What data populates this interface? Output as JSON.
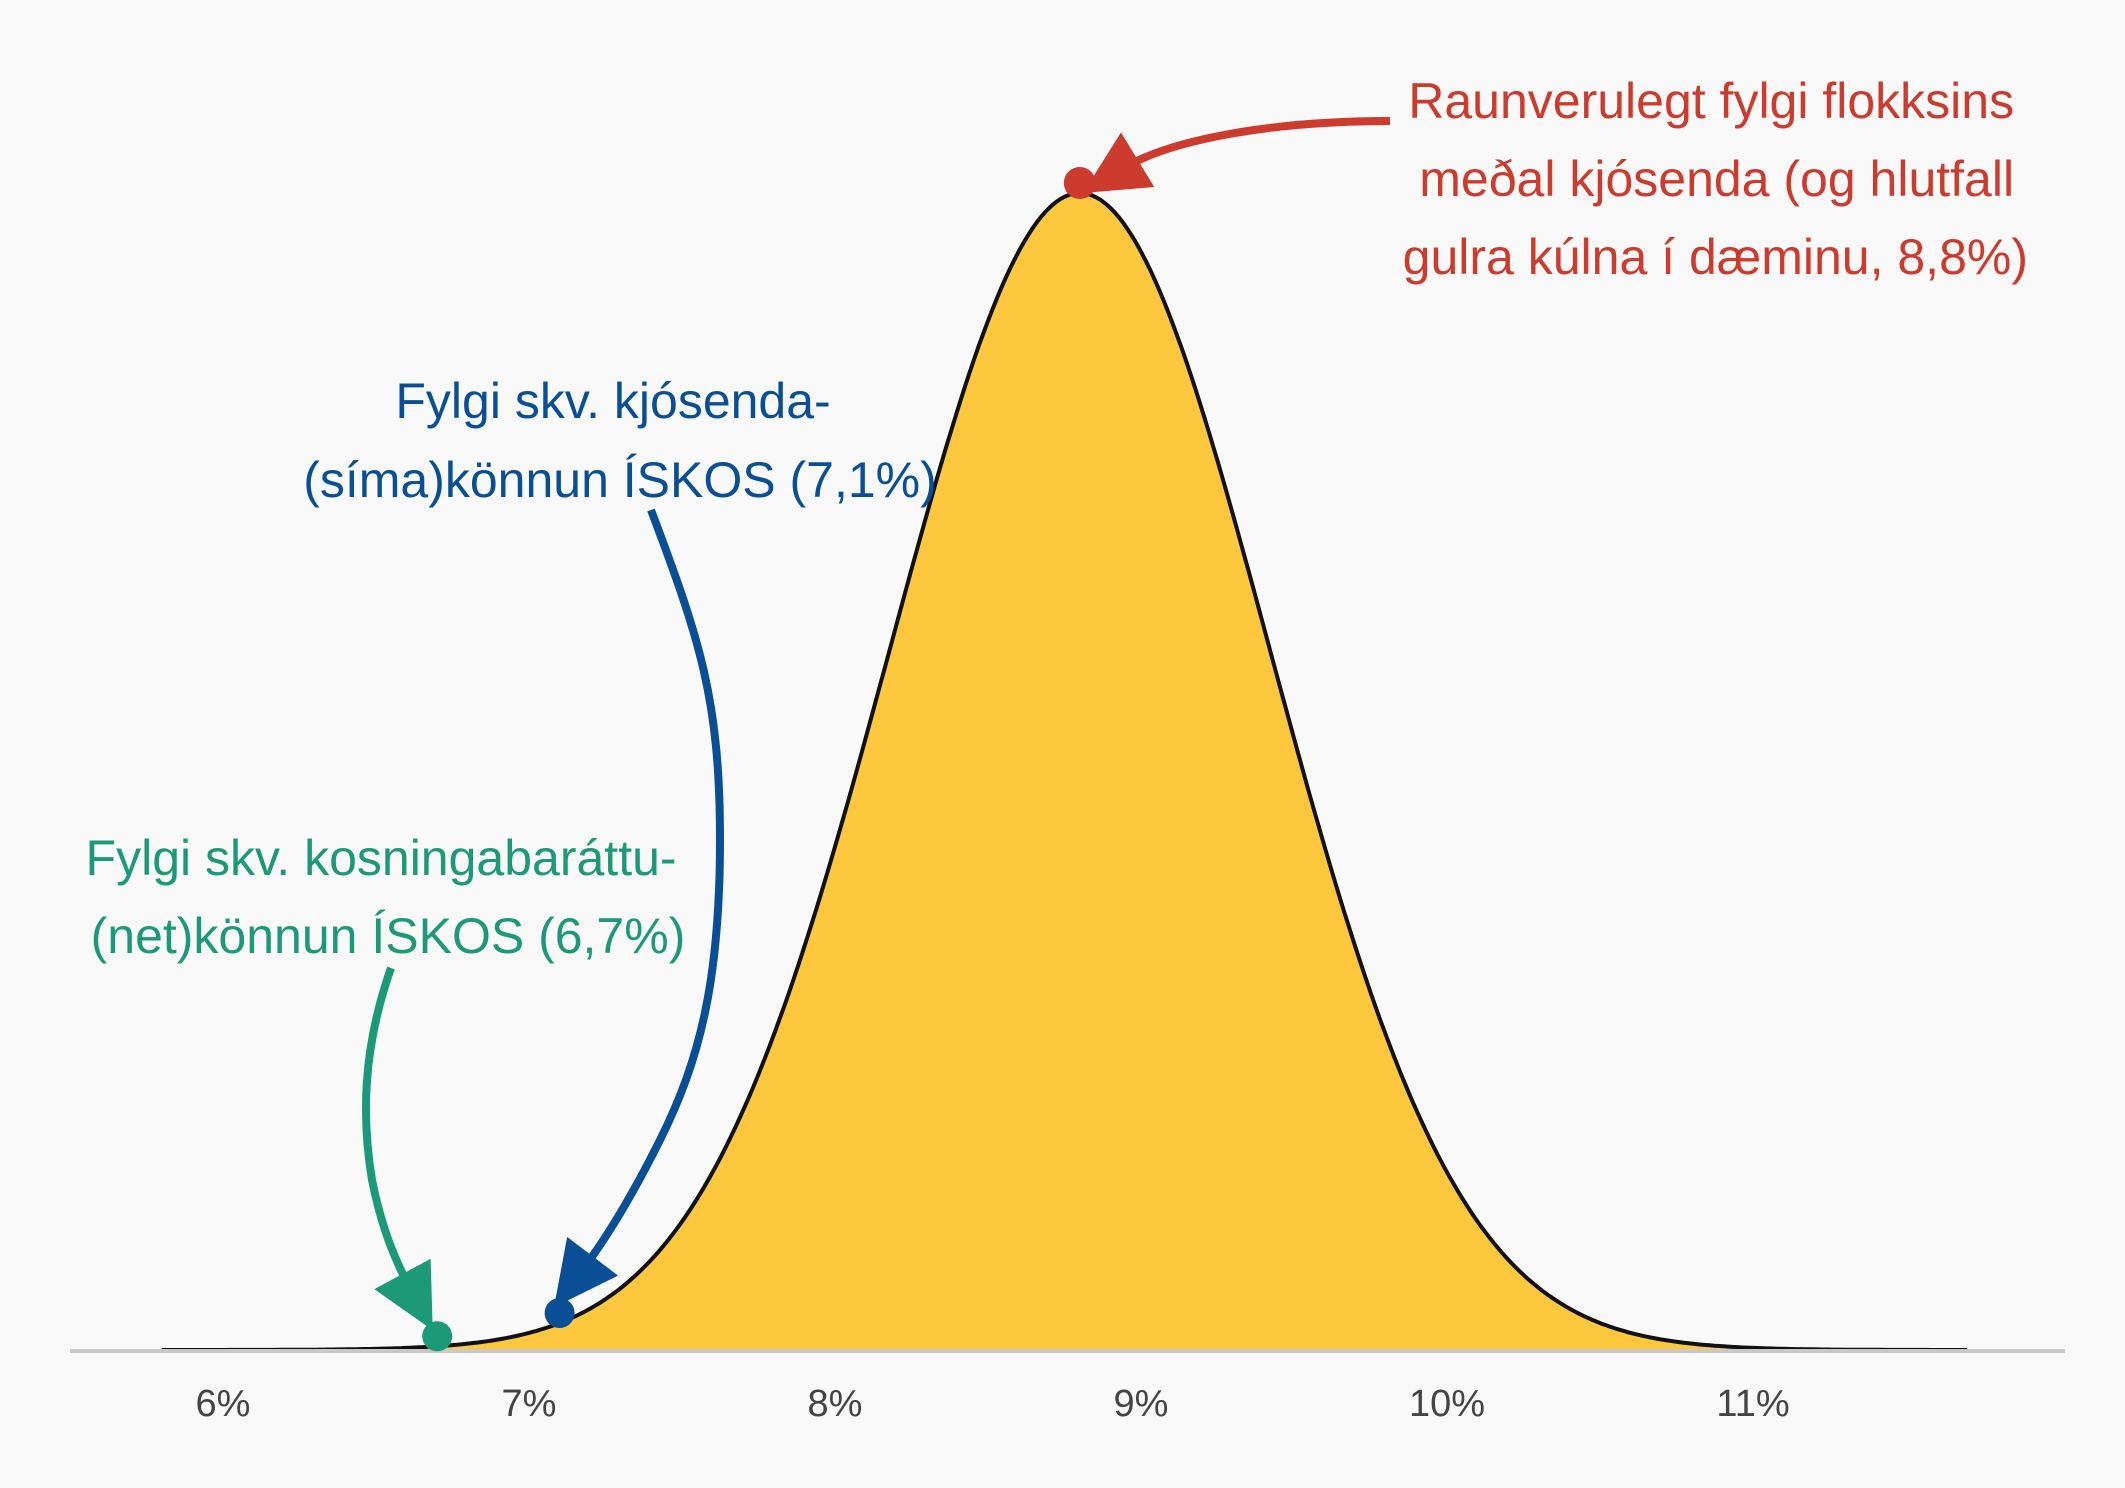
{
  "chart_data": {
    "type": "area",
    "title": "",
    "xlabel": "",
    "ylabel": "",
    "xlim": [
      5.5,
      12.0
    ],
    "x_ticks": [
      6,
      7,
      8,
      9,
      10,
      11
    ],
    "x_tick_labels": [
      "6%",
      "7%",
      "8%",
      "9%",
      "10%",
      "11%"
    ],
    "series": [
      {
        "distribution": "normal",
        "mean": 8.8,
        "sd": 0.62,
        "range": [
          5.8,
          11.7
        ],
        "fill_color": "#fec83e",
        "line_color": "#111111"
      }
    ],
    "grid": false,
    "legend": "none",
    "annotations": [
      {
        "id": "true",
        "x": 8.8,
        "color": "#cc3b2d",
        "lines": [
          "Raunverulegt fylgi flokksins",
          "meðal kjósenda (og hlutfall",
          "gulra kúlna í dæminu, 8,8%)"
        ]
      },
      {
        "id": "phone",
        "x": 7.1,
        "color": "#0a4f96",
        "lines": [
          "Fylgi skv. kjósenda-",
          "(síma)könnun ÍSKOS (7,1%)"
        ]
      },
      {
        "id": "net",
        "x": 6.7,
        "color": "#1c9a77",
        "lines": [
          "Fylgi skv. kosningabaráttu-",
          "(net)könnun ÍSKOS (6,7%)"
        ]
      }
    ]
  }
}
